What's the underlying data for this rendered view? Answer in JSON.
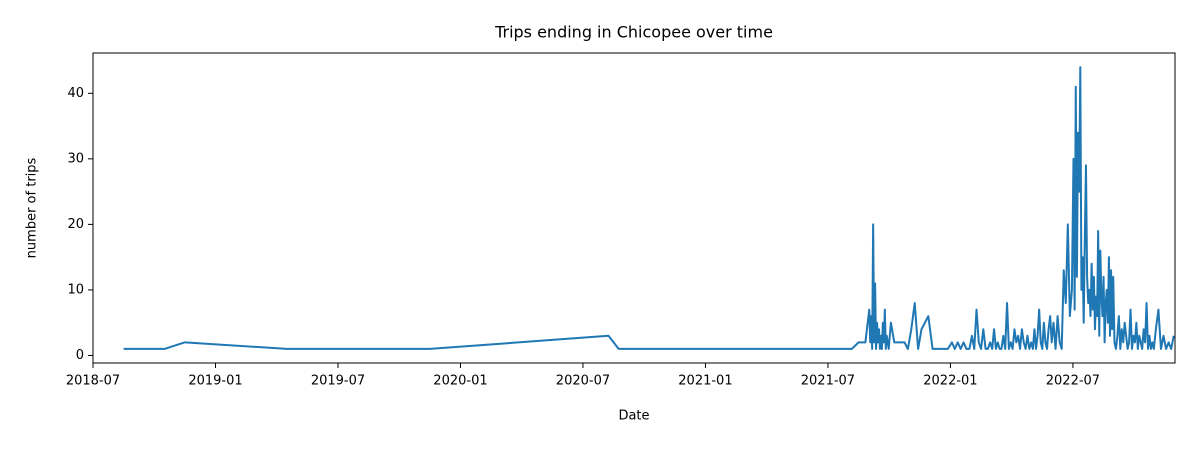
{
  "chart_data": {
    "type": "line",
    "title": "Trips ending in Chicopee over time",
    "xlabel": "Date",
    "ylabel": "number of trips",
    "x": [
      "2018-08",
      "2018-10",
      "2018-11",
      "2019-04",
      "2019-11",
      "2020-08",
      "2020-08",
      "2021-08",
      "2021-08",
      "2021-08",
      "2021-09",
      "2021-09",
      "2021-09",
      "2021-09",
      "2021-09",
      "2021-09",
      "2021-09",
      "2021-09",
      "2021-09",
      "2021-09",
      "2021-09",
      "2021-09",
      "2021-09",
      "2021-09",
      "2021-09",
      "2021-09",
      "2021-09",
      "2021-09",
      "2021-09",
      "2021-09",
      "2021-09",
      "2021-10",
      "2021-10",
      "2021-10",
      "2021-10",
      "2021-10",
      "2021-10",
      "2021-11",
      "2021-11",
      "2021-11",
      "2021-11",
      "2021-11",
      "2021-11",
      "2021-12",
      "2021-12",
      "2021-12",
      "2021-12",
      "2022-01",
      "2022-01",
      "2022-01",
      "2022-01",
      "2022-01",
      "2022-01",
      "2022-01",
      "2022-02",
      "2022-02",
      "2022-02",
      "2022-02",
      "2022-02",
      "2022-02",
      "2022-02",
      "2022-02",
      "2022-02",
      "2022-03",
      "2022-03",
      "2022-03",
      "2022-03",
      "2022-03",
      "2022-03",
      "2022-03",
      "2022-03",
      "2022-03",
      "2022-03",
      "2022-03",
      "2022-04",
      "2022-04",
      "2022-04",
      "2022-04",
      "2022-04",
      "2022-04",
      "2022-04",
      "2022-04",
      "2022-04",
      "2022-04",
      "2022-04",
      "2022-05",
      "2022-05",
      "2022-05",
      "2022-05",
      "2022-05",
      "2022-05",
      "2022-05",
      "2022-05",
      "2022-05",
      "2022-05",
      "2022-05",
      "2022-05",
      "2022-05",
      "2022-06",
      "2022-06",
      "2022-06",
      "2022-06",
      "2022-06",
      "2022-06",
      "2022-06",
      "2022-06",
      "2022-06",
      "2022-06",
      "2022-07",
      "2022-07",
      "2022-07",
      "2022-07",
      "2022-07",
      "2022-07",
      "2022-07",
      "2022-07",
      "2022-07",
      "2022-07",
      "2022-07",
      "2022-07",
      "2022-07",
      "2022-07",
      "2022-07",
      "2022-07",
      "2022-07",
      "2022-07",
      "2022-08",
      "2022-08",
      "2022-08",
      "2022-08",
      "2022-08",
      "2022-08",
      "2022-08",
      "2022-08",
      "2022-08",
      "2022-08",
      "2022-08",
      "2022-08",
      "2022-08",
      "2022-08",
      "2022-08",
      "2022-08",
      "2022-08",
      "2022-08",
      "2022-08",
      "2022-09",
      "2022-09",
      "2022-09",
      "2022-09",
      "2022-09",
      "2022-09",
      "2022-09",
      "2022-09",
      "2022-09",
      "2022-09",
      "2022-09",
      "2022-09",
      "2022-09",
      "2022-09",
      "2022-10",
      "2022-10",
      "2022-10",
      "2022-10",
      "2022-10",
      "2022-10",
      "2022-10",
      "2022-10",
      "2022-10",
      "2022-10",
      "2022-10",
      "2022-10",
      "2022-10",
      "2022-10",
      "2022-11",
      "2022-11",
      "2022-11",
      "2022-11",
      "2022-11",
      "2022-11",
      "2022-11",
      "2022-11"
    ],
    "values": [
      1,
      1,
      2,
      1,
      1,
      3,
      1,
      1,
      2,
      2,
      7,
      2,
      6,
      1,
      20,
      2,
      11,
      1,
      5,
      2,
      4,
      1,
      3,
      1,
      5,
      2,
      7,
      1,
      3,
      2,
      1,
      5,
      2,
      2,
      2,
      2,
      1,
      4,
      8,
      1,
      4,
      5,
      6,
      1,
      1,
      1,
      1,
      2,
      1,
      2,
      1,
      2,
      1,
      1,
      3,
      1,
      7,
      2,
      1,
      4,
      1,
      1,
      2,
      1,
      4,
      1,
      2,
      1,
      1,
      3,
      1,
      8,
      1,
      2,
      1,
      4,
      2,
      3,
      1,
      4,
      2,
      1,
      3,
      1,
      2,
      1,
      4,
      1,
      3,
      7,
      2,
      1,
      5,
      2,
      1,
      4,
      6,
      2,
      5,
      1,
      6,
      2,
      1,
      13,
      8,
      20,
      6,
      10,
      30,
      7,
      41,
      12,
      34,
      25,
      44,
      10,
      15,
      5,
      18,
      29,
      12,
      8,
      10,
      6,
      14,
      7,
      12,
      4,
      9,
      6,
      19,
      3,
      16,
      9,
      6,
      12,
      2,
      8,
      10,
      5,
      15,
      3,
      13,
      4,
      12,
      2,
      1,
      3,
      6,
      1,
      4,
      2,
      5,
      3,
      1,
      2,
      7,
      1,
      3,
      2,
      5,
      1,
      3,
      2,
      1,
      4,
      2,
      8,
      1,
      3,
      1,
      2,
      1,
      4,
      7,
      1,
      3,
      1,
      2,
      1,
      3
    ],
    "color": "#1f77b4",
    "xlim": [
      "2018-07",
      "2022-12"
    ],
    "xticks": [
      "2018-07",
      "2019-01",
      "2019-07",
      "2020-01",
      "2020-07",
      "2021-01",
      "2021-07",
      "2022-01",
      "2022-07"
    ],
    "ylim": [
      -1.15,
      46.15
    ],
    "yticks": [
      0,
      10,
      20,
      30,
      40
    ]
  }
}
